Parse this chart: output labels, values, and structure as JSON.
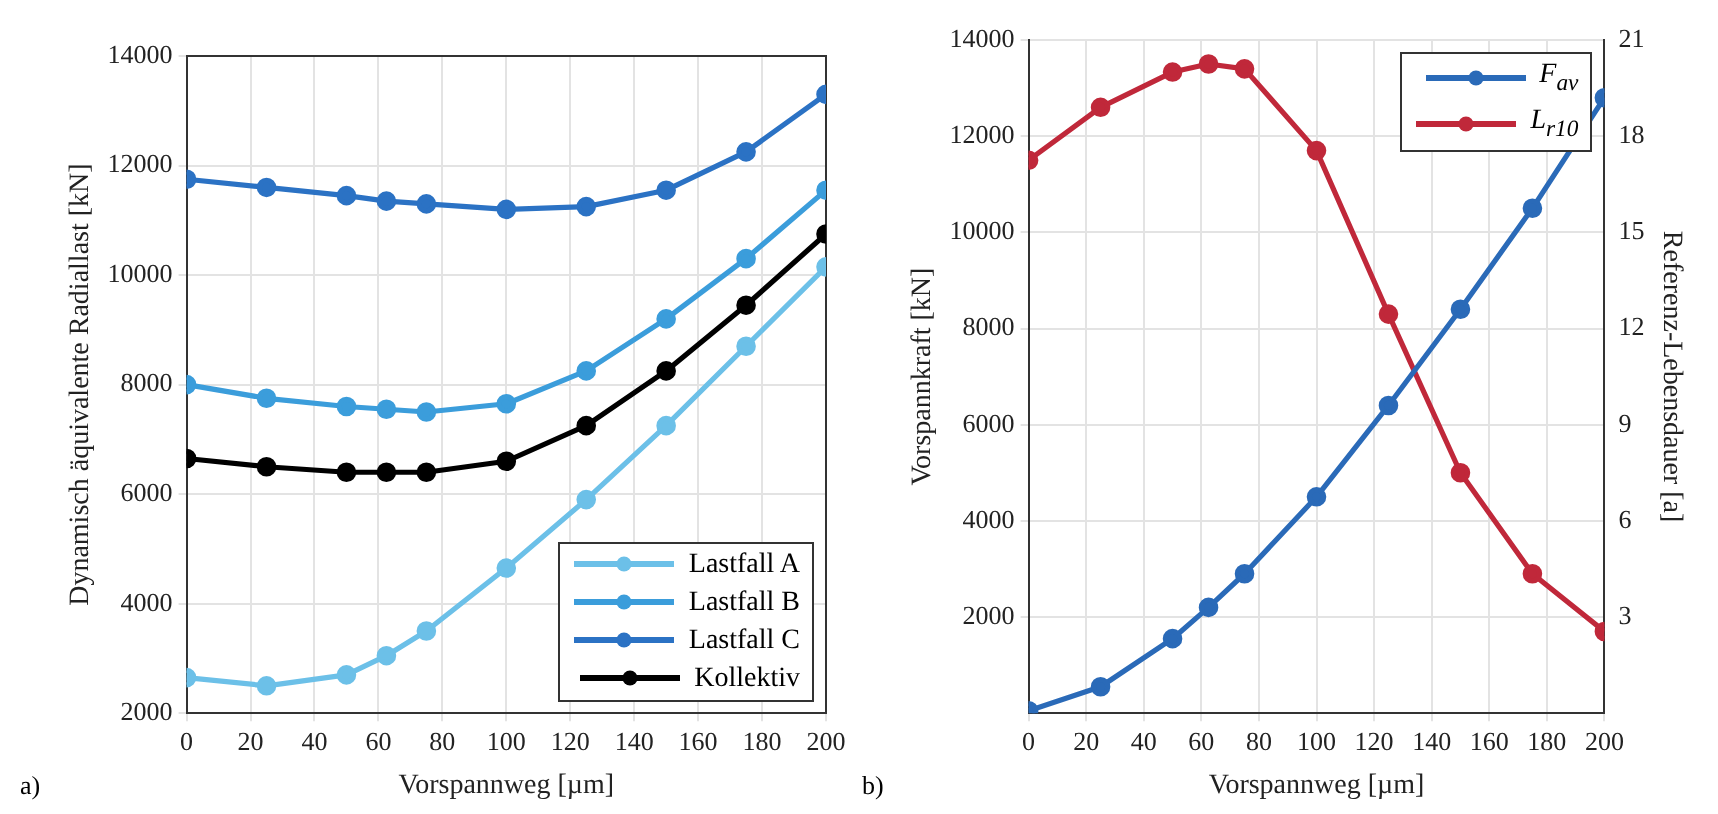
{
  "chart_data": [
    {
      "type": "line",
      "xlabel": "Vorspannweg [µm]",
      "ylabel": "Dynamisch äquivalente Radiallast [kN]",
      "x": [
        0,
        25,
        50,
        62.5,
        75,
        100,
        125,
        150,
        175,
        200
      ],
      "xlim": [
        0,
        200
      ],
      "xticks": [
        0,
        20,
        40,
        60,
        80,
        100,
        120,
        140,
        160,
        180,
        200
      ],
      "ylim": [
        2000,
        14000
      ],
      "yticks": [
        2000,
        4000,
        6000,
        8000,
        10000,
        12000,
        14000
      ],
      "grid": true,
      "legend": "bottom right",
      "marker": "circle",
      "line_style": "solid",
      "annotations": [
        "a)"
      ],
      "series": [
        {
          "name": "Lastfall A",
          "color": "#6cc0e8",
          "values": [
            2650,
            2500,
            2700,
            3050,
            3500,
            4650,
            5900,
            7250,
            8700,
            10150
          ]
        },
        {
          "name": "Lastfall B",
          "color": "#3b9ddb",
          "values": [
            8000,
            7750,
            7600,
            7550,
            7500,
            7650,
            8250,
            9200,
            10300,
            11550
          ]
        },
        {
          "name": "Lastfall C",
          "color": "#2b72c4",
          "values": [
            11750,
            11600,
            11450,
            11350,
            11300,
            11200,
            11250,
            11550,
            12250,
            13300
          ]
        },
        {
          "name": "Kollektiv",
          "color": "#000000",
          "values": [
            6650,
            6500,
            6400,
            6400,
            6400,
            6600,
            7250,
            8250,
            9450,
            10750
          ]
        }
      ]
    },
    {
      "type": "line",
      "xlabel": "Vorspannweg [µm]",
      "ylabel": "Vorspannkraft [kN]",
      "y2label": "Referenz-Lebensdauer [a]",
      "x": [
        0,
        25,
        50,
        62.5,
        75,
        100,
        125,
        150,
        175,
        200
      ],
      "xlim": [
        0,
        200
      ],
      "xticks": [
        0,
        20,
        40,
        60,
        80,
        100,
        120,
        140,
        160,
        180,
        200
      ],
      "ylim": [
        0,
        14000
      ],
      "yticks": [
        2000,
        4000,
        6000,
        8000,
        10000,
        12000,
        14000
      ],
      "y2lim": [
        0,
        21
      ],
      "y2ticks": [
        3,
        6,
        9,
        12,
        15,
        18,
        21
      ],
      "grid": true,
      "legend": "top right",
      "marker": "circle",
      "line_style": "solid",
      "annotations": [
        "b)"
      ],
      "series": [
        {
          "name": "F$_{av}$",
          "color": "#2a6ab8",
          "values": [
            50,
            550,
            1550,
            2200,
            2900,
            4500,
            6400,
            8400,
            10500,
            12800
          ]
        },
        {
          "name": "L$_{r10}$",
          "color": "#c0283a",
          "axis": "y2",
          "values": [
            17.25,
            18.9,
            20.0,
            20.25,
            20.1,
            17.55,
            12.45,
            7.5,
            4.35,
            2.55
          ]
        }
      ]
    }
  ]
}
